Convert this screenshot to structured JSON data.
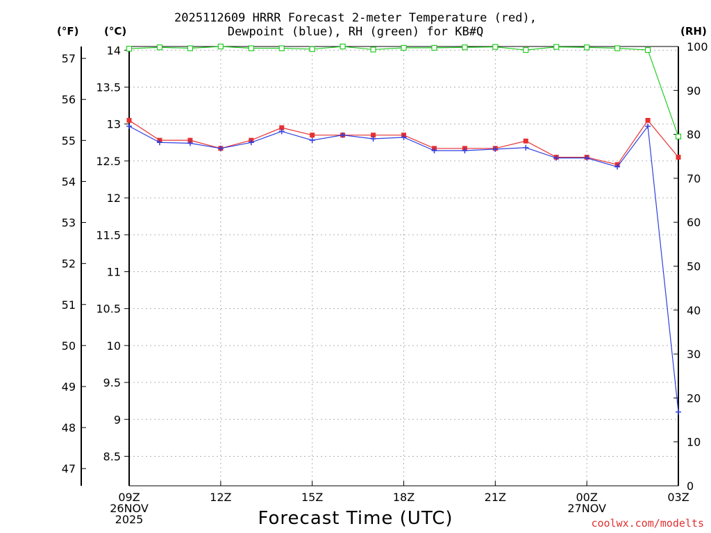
{
  "title_line1": "2025112609 HRRR Forecast 2-meter Temperature (red),",
  "title_line2": "Dewpoint (blue), RH (green) for KB#Q",
  "units": {
    "fahrenheit": "(°F)",
    "celsius": "(°C)",
    "rh": "(RH)"
  },
  "xlabel": "Forecast Time (UTC)",
  "credit": "coolwx.com/modelts",
  "colors": {
    "temperature": "#e83030",
    "dewpoint": "#2f3fe0",
    "rh": "#22cc22",
    "grid": "#b0b0b0"
  },
  "chart_data": {
    "type": "line",
    "title": "2025112609 HRRR Forecast 2-meter Temperature (red), Dewpoint (blue), RH (green) for KB#Q",
    "xlabel": "Forecast Time (UTC)",
    "x_hours": [
      0,
      1,
      2,
      3,
      4,
      5,
      6,
      7,
      8,
      9,
      10,
      11,
      12,
      13,
      14,
      15,
      16,
      17,
      18
    ],
    "x_ticks": [
      {
        "hour": 0,
        "lines": [
          "09Z",
          "26NOV",
          "2025"
        ]
      },
      {
        "hour": 3,
        "lines": [
          "12Z"
        ]
      },
      {
        "hour": 6,
        "lines": [
          "15Z"
        ]
      },
      {
        "hour": 9,
        "lines": [
          "18Z"
        ]
      },
      {
        "hour": 12,
        "lines": [
          "21Z"
        ]
      },
      {
        "hour": 15,
        "lines": [
          "00Z",
          "27NOV"
        ]
      },
      {
        "hour": 18,
        "lines": [
          "03Z"
        ]
      }
    ],
    "celsius_axis": {
      "range": [
        8.1,
        14.05
      ],
      "ticks": [
        "8.5",
        "9",
        "9.5",
        "10",
        "10.5",
        "11",
        "11.5",
        "12",
        "12.5",
        "13",
        "13.5",
        "14"
      ]
    },
    "fahrenheit_axis": {
      "ticks": [
        "47",
        "48",
        "49",
        "50",
        "51",
        "52",
        "53",
        "54",
        "55",
        "56",
        "57"
      ]
    },
    "rh_axis": {
      "range": [
        0,
        100
      ],
      "ticks": [
        "0",
        "10",
        "20",
        "30",
        "40",
        "50",
        "60",
        "70",
        "80",
        "90",
        "100"
      ]
    },
    "series": [
      {
        "name": "Temperature",
        "units": "C",
        "axis": "celsius",
        "values": [
          13.05,
          12.78,
          12.78,
          12.67,
          12.78,
          12.95,
          12.85,
          12.85,
          12.85,
          12.85,
          12.67,
          12.67,
          12.67,
          12.77,
          12.55,
          12.55,
          12.45,
          13.05,
          12.55
        ]
      },
      {
        "name": "Dewpoint",
        "units": "C",
        "axis": "celsius",
        "values": [
          12.97,
          12.75,
          12.74,
          12.67,
          12.75,
          12.9,
          12.78,
          12.85,
          12.8,
          12.82,
          12.64,
          12.64,
          12.66,
          12.68,
          12.54,
          12.54,
          12.42,
          12.97,
          9.1
        ]
      },
      {
        "name": "RH",
        "units": "%",
        "axis": "rh",
        "values": [
          99.5,
          99.8,
          99.6,
          100,
          99.6,
          99.6,
          99.4,
          100,
          99.3,
          99.7,
          99.7,
          99.8,
          99.9,
          99.2,
          99.9,
          99.8,
          99.6,
          99.2,
          79.5
        ]
      }
    ]
  }
}
